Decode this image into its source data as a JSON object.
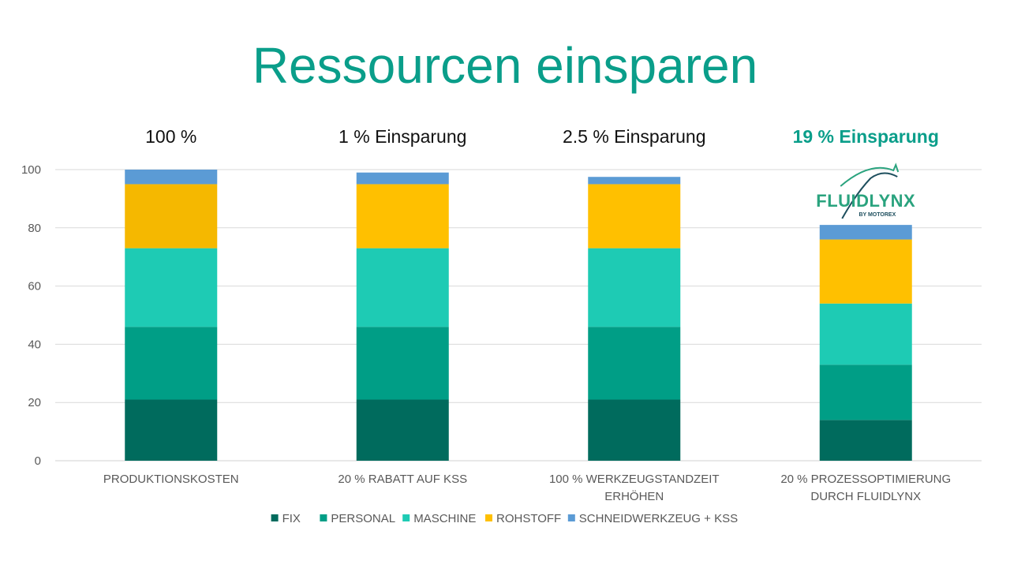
{
  "title": "Ressourcen einsparen",
  "logo": {
    "name": "FLUIDLYNX",
    "sub": "BY MOTOREX",
    "colors": {
      "green": "#2aa37e",
      "dark": "#1e4f5e"
    }
  },
  "chart_data": {
    "type": "bar",
    "stacked": true,
    "categories": [
      [
        "PRODUKTIONSKOSTEN"
      ],
      [
        "20 % RABATT AUF KSS"
      ],
      [
        "100 % WERKZEUGSTANDZEIT",
        "ERHÖHEN"
      ],
      [
        "20 % PROZESSOPTIMIERUNG",
        "DURCH FLUIDLYNX"
      ]
    ],
    "annotations": [
      "100 %",
      "1 % Einsparung",
      "2.5 % Einsparung",
      "19 % Einsparung"
    ],
    "highlight_annotation": 3,
    "series": [
      {
        "name": "FIX",
        "color": "#006b5d",
        "values": [
          21,
          21,
          21,
          14
        ]
      },
      {
        "name": "PERSONAL",
        "color": "#009e86",
        "values": [
          25,
          25,
          25,
          19
        ]
      },
      {
        "name": "MASCHINE",
        "color": "#1ecbb4",
        "values": [
          27,
          27,
          27,
          21
        ]
      },
      {
        "name": "ROHSTOFF",
        "color": "#ffc000",
        "values": [
          22,
          22,
          22,
          22
        ]
      },
      {
        "name": "SCHNEIDWERKZEUG + KSS",
        "color": "#5b9bd5",
        "values": [
          5,
          4,
          2.5,
          5
        ]
      }
    ],
    "first_bar_rohstoff_color": "#f5b800",
    "ylim": [
      0,
      100
    ],
    "yticks": [
      0,
      20,
      40,
      60,
      80,
      100
    ],
    "grid": true,
    "legend": "bottom"
  }
}
